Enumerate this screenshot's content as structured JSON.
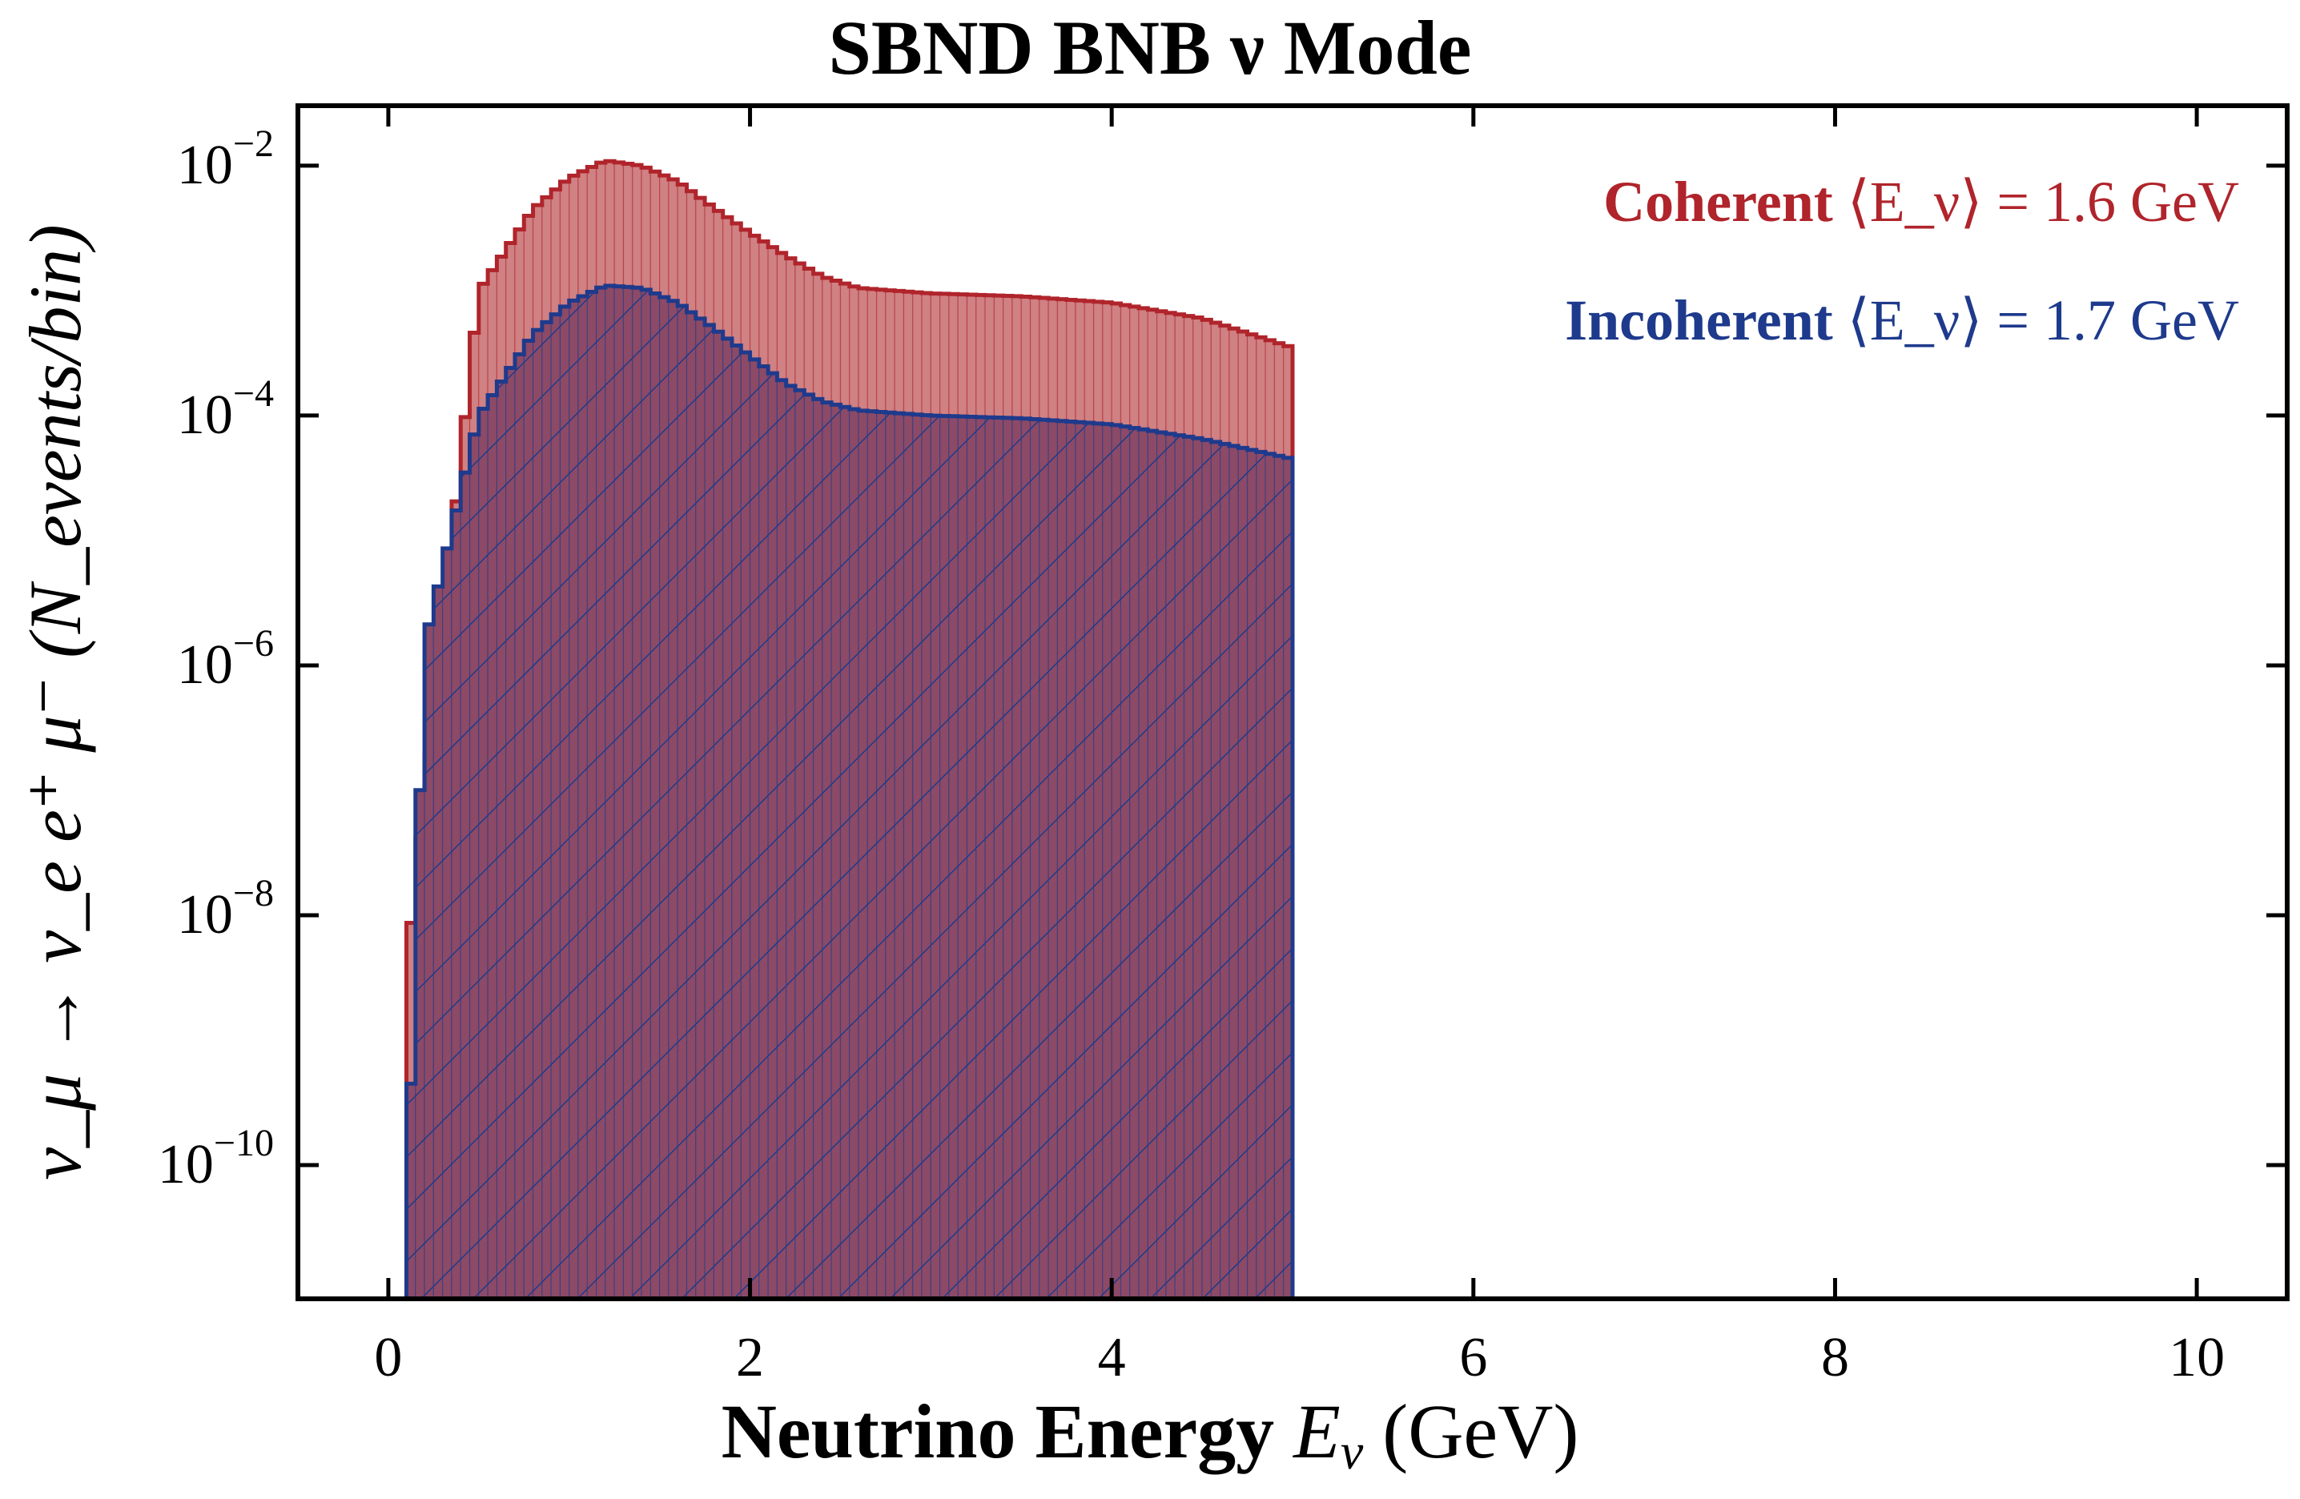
{
  "chart_data": {
    "type": "histogram",
    "title": "SBND BNB ν Mode",
    "xlabel": {
      "bold": "Neutrino Energy",
      "math": "E",
      "sub": "ν",
      "unit": " (GeV)"
    },
    "ylabel": {
      "text": "ν_μ → ν_e e⁺ μ⁻ (N_events/bin)"
    },
    "xlim": [
      -0.5,
      10.5
    ],
    "ylim_log10": [
      -11.07,
      -1.52
    ],
    "yscale": "log",
    "x_ticks": [
      "0",
      "2",
      "4",
      "6",
      "8",
      "10"
    ],
    "x_tick_values": [
      0,
      2,
      4,
      6,
      8,
      10
    ],
    "y_tick_values": [
      -2,
      -4,
      -6,
      -8,
      -10
    ],
    "y_tick_labels": [
      {
        "base": "10",
        "exp": "−2"
      },
      {
        "base": "10",
        "exp": "−4"
      },
      {
        "base": "10",
        "exp": "−6"
      },
      {
        "base": "10",
        "exp": "−8"
      },
      {
        "base": "10",
        "exp": "−10"
      }
    ],
    "bin_width": 0.05,
    "x_start": 0.1,
    "x_end": 5.0,
    "legend_position": "top-right",
    "series": [
      {
        "name": "Coherent",
        "stat": "⟨E_ν⟩ = 1.6 GeV",
        "color": "#b0242b",
        "fill": "#cf8183",
        "hatch": false,
        "x": [
          0.1,
          0.5,
          0.8,
          1.0,
          1.2,
          1.4,
          1.6,
          1.8,
          2.0,
          2.2,
          2.4,
          2.6,
          3.0,
          3.5,
          4.0,
          4.5,
          5.0
        ],
        "values": [
          4e-09,
          0.001,
          0.0045,
          0.008,
          0.011,
          0.01,
          0.0075,
          0.0046,
          0.0029,
          0.0019,
          0.0013,
          0.00105,
          0.00095,
          0.0009,
          0.0008,
          0.0006,
          0.00035
        ]
      },
      {
        "name": "Incoherent",
        "stat": "⟨E_ν⟩ = 1.7 GeV",
        "color": "#1e3a8c",
        "fill": "#8c4a66",
        "hatch": true,
        "x": [
          0.1,
          0.2,
          0.5,
          0.8,
          1.0,
          1.2,
          1.4,
          1.6,
          1.8,
          2.0,
          2.2,
          2.4,
          2.6,
          3.0,
          3.5,
          4.0,
          4.5,
          5.0
        ],
        "values": [
          3e-11,
          1.5e-06,
          0.0001,
          0.00045,
          0.0008,
          0.0011,
          0.00105,
          0.0008,
          0.0005,
          0.0003,
          0.00018,
          0.00013,
          0.00011,
          0.0001,
          9.5e-05,
          8.5e-05,
          6.5e-05,
          4.5e-05
        ]
      }
    ]
  }
}
